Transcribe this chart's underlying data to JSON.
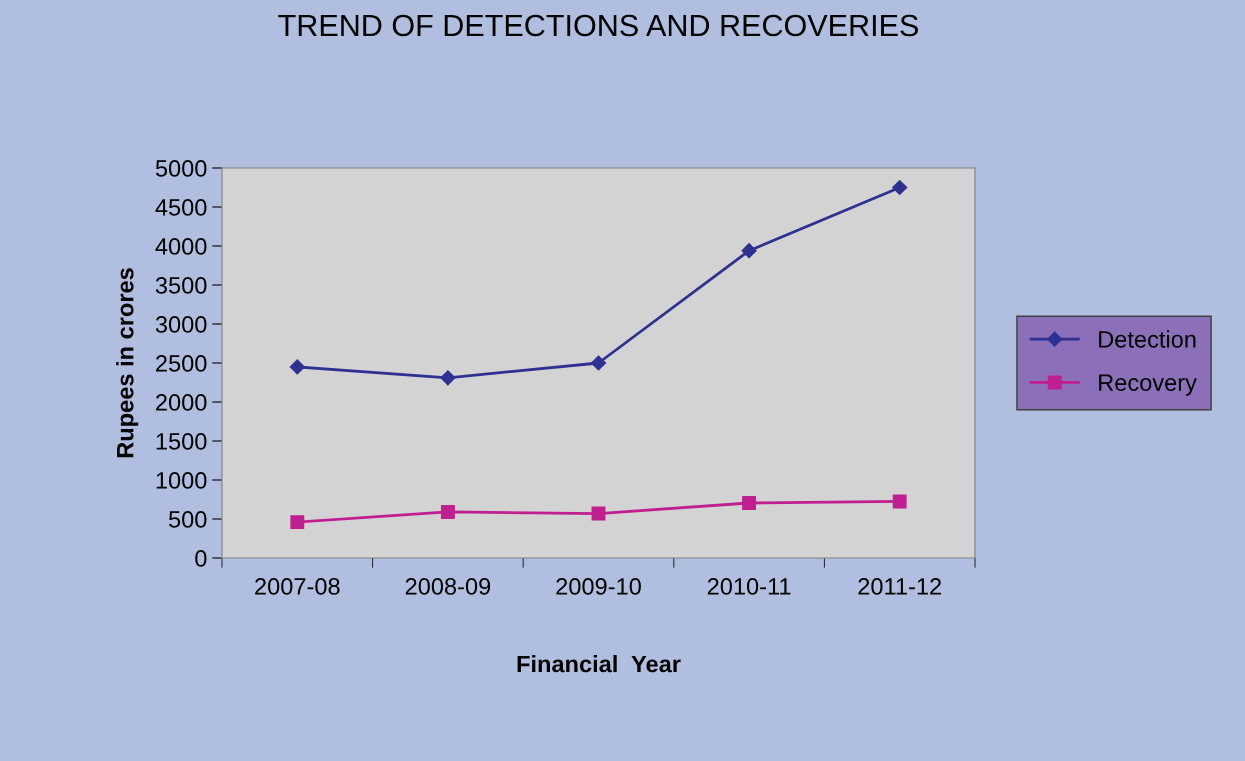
{
  "chart_data": {
    "type": "line",
    "title": "TREND OF DETECTIONS AND RECOVERIES",
    "xlabel": "Financial  Year",
    "ylabel": "Rupees in crores",
    "categories": [
      "2007-08",
      "2008-09",
      "2009-10",
      "2010-11",
      "2011-12"
    ],
    "series": [
      {
        "name": "Detection",
        "color": "#2e3192",
        "marker": "diamond",
        "values": [
          2450,
          2310,
          2500,
          3940,
          4750
        ]
      },
      {
        "name": "Recovery",
        "color": "#c0208f",
        "marker": "square",
        "values": [
          460,
          590,
          570,
          705,
          725
        ]
      }
    ],
    "ylim": [
      0,
      5000
    ],
    "yticks": [
      0,
      500,
      1000,
      1500,
      2000,
      2500,
      3000,
      3500,
      4000,
      4500,
      5000
    ],
    "grid": false,
    "legend": "right",
    "line_style": "solid"
  }
}
